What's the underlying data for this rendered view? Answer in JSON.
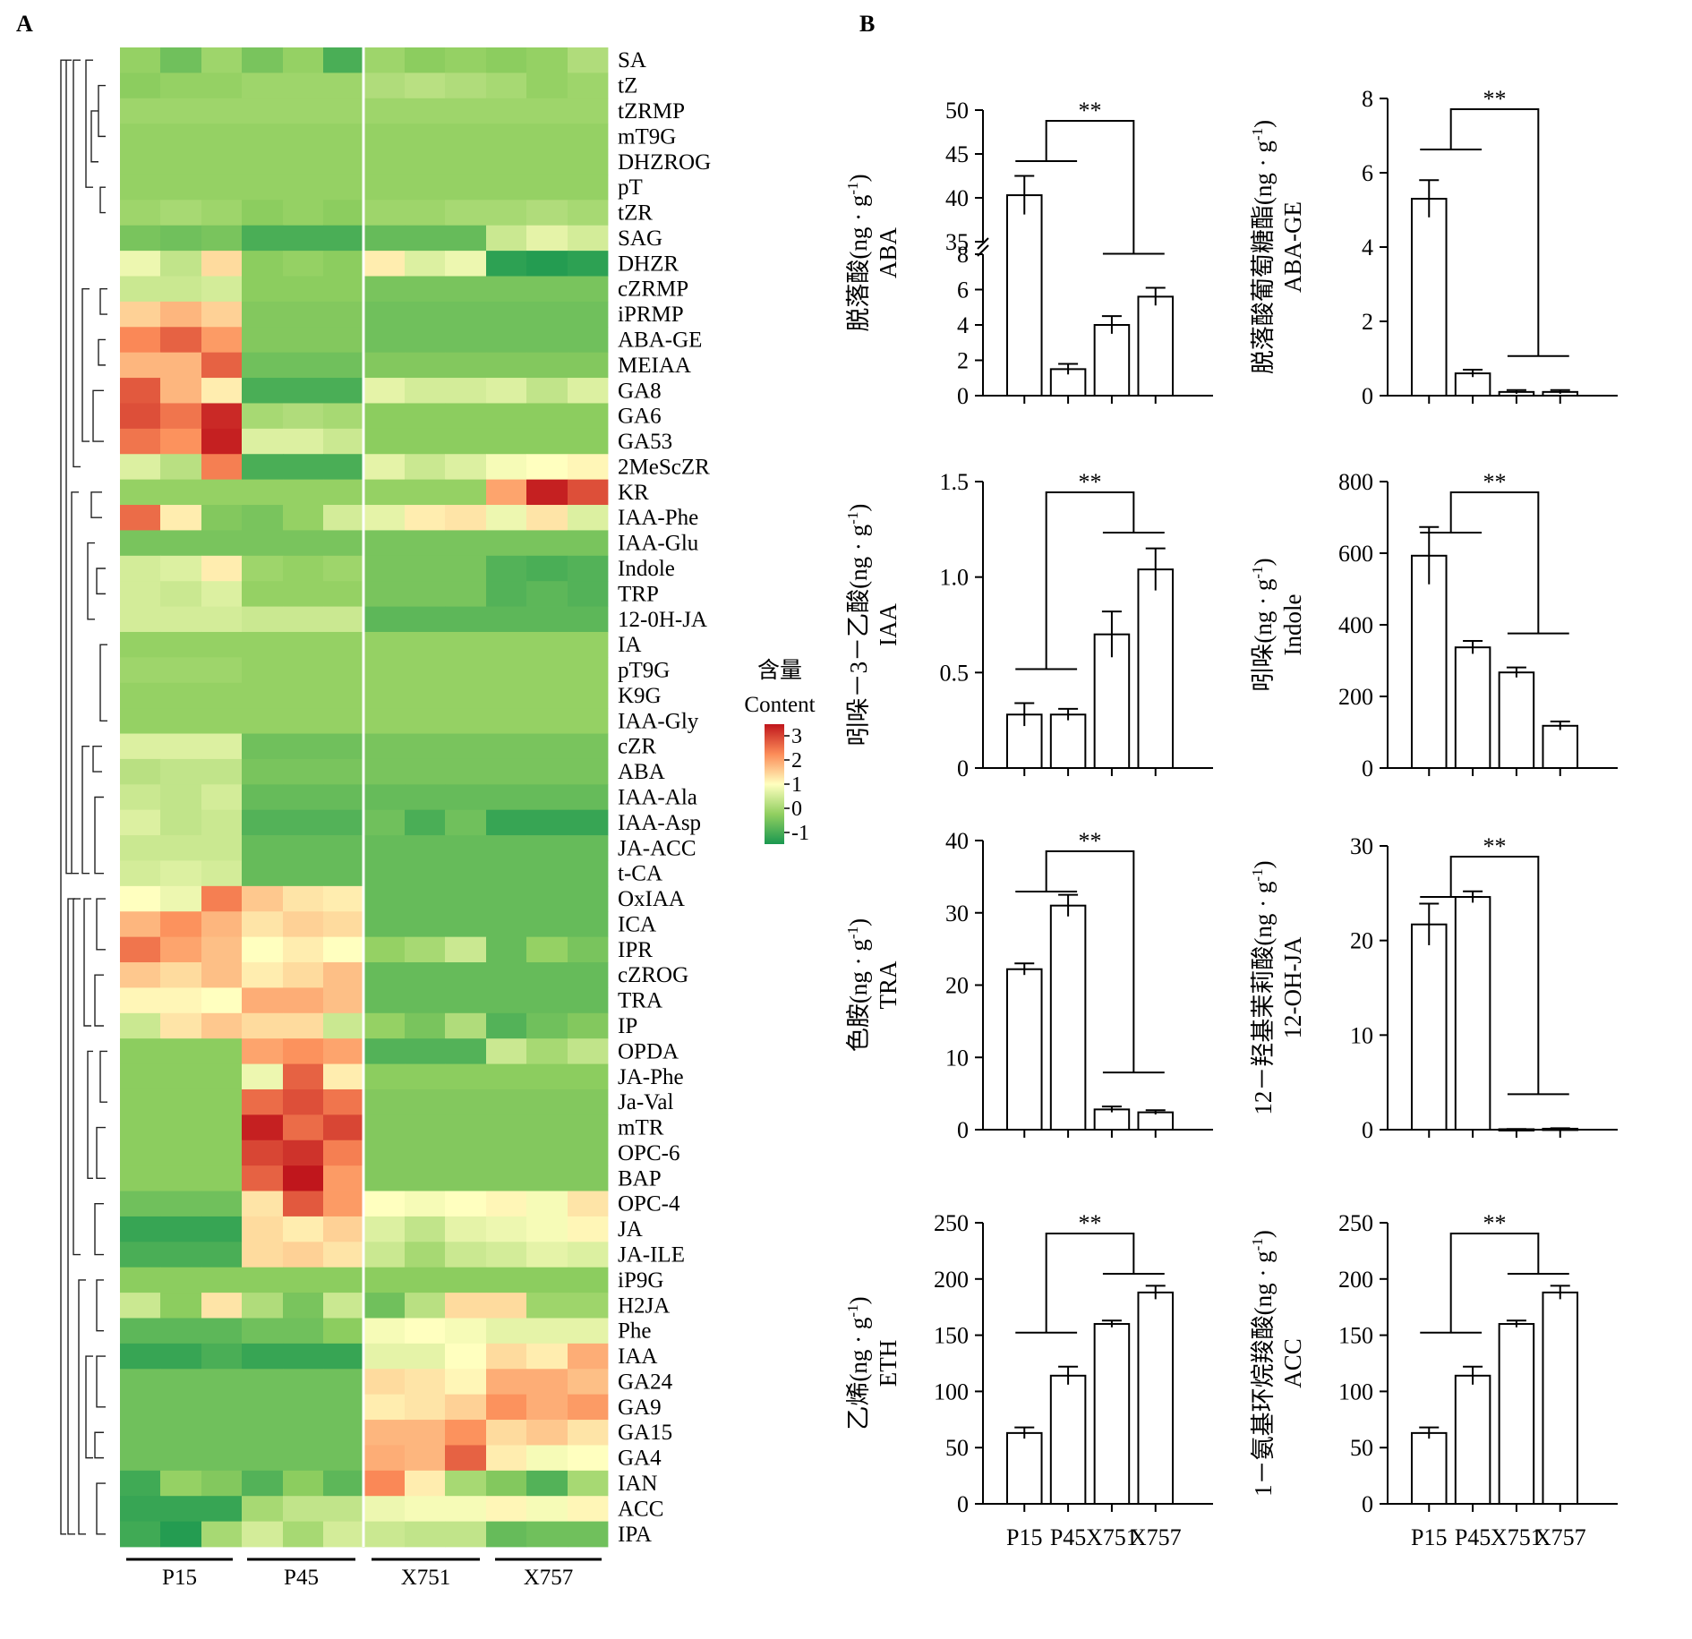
{
  "panels": {
    "a": "A",
    "b": "B"
  },
  "chart_data": [
    {
      "type": "heatmap",
      "panel": "A",
      "rows": [
        "SA",
        "tZ",
        "tZRMP",
        "mT9G",
        "DHZROG",
        "pT",
        "tZR",
        "SAG",
        "DHZR",
        "cZRMP",
        "iPRMP",
        "ABA-GE",
        "MEIAA",
        "GA8",
        "GA6",
        "GA53",
        "2MeScZR",
        "KR",
        "IAA-Phe",
        "IAA-Glu",
        "Indole",
        "TRP",
        "12-0H-JA",
        "IA",
        "pT9G",
        "K9G",
        "IAA-Gly",
        "cZR",
        "ABA",
        "IAA-Ala",
        "IAA-Asp",
        "JA-ACC",
        "t-CA",
        "OxIAA",
        "ICA",
        "IPR",
        "cZROG",
        "TRA",
        "IP",
        "OPDA",
        "JA-Phe",
        "Ja-Val",
        "mTR",
        "OPC-6",
        "BAP",
        "OPC-4",
        "JA",
        "JA-ILE",
        "iP9G",
        "H2JA",
        "Phe",
        "IAA",
        "GA24",
        "GA9",
        "GA15",
        "GA4",
        "IAN",
        "ACC",
        "IPA"
      ],
      "groups": [
        "P15",
        "P45",
        "X751",
        "X757"
      ],
      "legend_title": "含量",
      "legend_subtitle": "Content",
      "scale_ticks": [
        "3",
        "2",
        "1",
        "0",
        "-1"
      ],
      "value_range": [
        -1.6,
        3.4
      ],
      "color_stops": [
        "#1a9850",
        "#91cf60",
        "#ffffbf",
        "#fc8d59",
        "#c0161c"
      ],
      "values": [
        [
          -0.3,
          -0.7,
          -0.2,
          -0.6,
          -0.3,
          -1.1,
          -0.2,
          -0.4,
          -0.3,
          -0.4,
          -0.3,
          0.0
        ],
        [
          -0.4,
          -0.3,
          -0.3,
          -0.2,
          -0.2,
          -0.2,
          0.0,
          0.1,
          0.0,
          -0.1,
          -0.3,
          -0.2
        ],
        [
          -0.2,
          -0.2,
          -0.2,
          -0.2,
          -0.2,
          -0.2,
          -0.2,
          -0.2,
          -0.2,
          -0.2,
          -0.2,
          -0.2
        ],
        [
          -0.3,
          -0.3,
          -0.3,
          -0.3,
          -0.3,
          -0.3,
          -0.3,
          -0.3,
          -0.3,
          -0.3,
          -0.3,
          -0.3
        ],
        [
          -0.3,
          -0.3,
          -0.3,
          -0.3,
          -0.3,
          -0.3,
          -0.3,
          -0.3,
          -0.3,
          -0.3,
          -0.3,
          -0.3
        ],
        [
          -0.3,
          -0.3,
          -0.3,
          -0.3,
          -0.3,
          -0.3,
          -0.3,
          -0.3,
          -0.3,
          -0.3,
          -0.3,
          -0.3
        ],
        [
          -0.2,
          -0.1,
          -0.2,
          -0.4,
          -0.3,
          -0.4,
          -0.2,
          -0.2,
          -0.1,
          -0.1,
          0.0,
          -0.1
        ],
        [
          -0.6,
          -0.7,
          -0.6,
          -1.1,
          -1.1,
          -1.1,
          -0.8,
          -0.8,
          -0.8,
          0.3,
          0.6,
          0.4
        ],
        [
          0.7,
          0.2,
          1.3,
          -0.4,
          -0.3,
          -0.4,
          1.1,
          0.5,
          0.7,
          -1.4,
          -1.5,
          -1.4
        ],
        [
          0.3,
          0.3,
          0.4,
          -0.4,
          -0.4,
          -0.4,
          -0.6,
          -0.6,
          -0.6,
          -0.6,
          -0.6,
          -0.6
        ],
        [
          1.4,
          1.7,
          1.4,
          -0.5,
          -0.5,
          -0.5,
          -0.7,
          -0.7,
          -0.7,
          -0.7,
          -0.7,
          -0.7
        ],
        [
          2.2,
          2.6,
          2.0,
          -0.5,
          -0.5,
          -0.5,
          -0.7,
          -0.7,
          -0.7,
          -0.7,
          -0.7,
          -0.7
        ],
        [
          1.7,
          1.7,
          2.6,
          -0.7,
          -0.7,
          -0.7,
          -0.5,
          -0.5,
          -0.5,
          -0.5,
          -0.5,
          -0.5
        ],
        [
          2.7,
          1.7,
          1.1,
          -1.1,
          -1.1,
          -1.1,
          0.6,
          0.4,
          0.4,
          0.5,
          0.2,
          0.5
        ],
        [
          2.8,
          2.4,
          3.2,
          -0.1,
          0.0,
          -0.1,
          -0.4,
          -0.4,
          -0.4,
          -0.4,
          -0.4,
          -0.4
        ],
        [
          2.4,
          2.1,
          3.3,
          0.5,
          0.5,
          0.3,
          -0.4,
          -0.4,
          -0.4,
          -0.4,
          -0.4,
          -0.4
        ],
        [
          0.5,
          0.1,
          2.3,
          -1.1,
          -1.1,
          -1.1,
          0.6,
          0.3,
          0.5,
          0.8,
          0.9,
          1.0
        ],
        [
          -0.3,
          -0.3,
          -0.3,
          -0.3,
          -0.3,
          -0.3,
          -0.3,
          -0.3,
          -0.3,
          1.9,
          3.3,
          2.8
        ],
        [
          2.5,
          1.1,
          -0.5,
          -0.6,
          -0.3,
          0.4,
          0.6,
          1.1,
          1.2,
          0.7,
          1.2,
          0.5
        ],
        [
          -0.6,
          -0.6,
          -0.6,
          -0.6,
          -0.6,
          -0.6,
          -0.6,
          -0.6,
          -0.6,
          -0.6,
          -0.6,
          -0.6
        ],
        [
          0.4,
          0.5,
          1.1,
          -0.2,
          -0.3,
          -0.2,
          -0.6,
          -0.6,
          -0.6,
          -1.0,
          -1.1,
          -1.0
        ],
        [
          0.4,
          0.3,
          0.5,
          -0.3,
          -0.3,
          -0.3,
          -0.6,
          -0.6,
          -0.6,
          -1.0,
          -0.9,
          -1.0
        ],
        [
          0.4,
          0.4,
          0.4,
          0.3,
          0.3,
          0.3,
          -0.9,
          -0.9,
          -0.9,
          -0.9,
          -0.9,
          -0.9
        ],
        [
          -0.3,
          -0.3,
          -0.3,
          -0.3,
          -0.3,
          -0.3,
          -0.3,
          -0.3,
          -0.3,
          -0.3,
          -0.3,
          -0.3
        ],
        [
          -0.2,
          -0.2,
          -0.2,
          -0.3,
          -0.3,
          -0.3,
          -0.3,
          -0.3,
          -0.3,
          -0.3,
          -0.3,
          -0.3
        ],
        [
          -0.3,
          -0.3,
          -0.3,
          -0.3,
          -0.3,
          -0.3,
          -0.3,
          -0.3,
          -0.3,
          -0.3,
          -0.3,
          -0.3
        ],
        [
          -0.3,
          -0.3,
          -0.3,
          -0.3,
          -0.3,
          -0.3,
          -0.3,
          -0.3,
          -0.3,
          -0.3,
          -0.3,
          -0.3
        ],
        [
          0.5,
          0.5,
          0.5,
          -0.7,
          -0.7,
          -0.7,
          -0.6,
          -0.6,
          -0.6,
          -0.6,
          -0.6,
          -0.6
        ],
        [
          0.1,
          0.2,
          0.2,
          -0.6,
          -0.6,
          -0.6,
          -0.6,
          -0.6,
          -0.6,
          -0.6,
          -0.6,
          -0.6
        ],
        [
          0.3,
          0.2,
          0.4,
          -0.8,
          -0.8,
          -0.8,
          -0.8,
          -0.8,
          -0.8,
          -0.8,
          -0.8,
          -0.8
        ],
        [
          0.5,
          0.2,
          0.3,
          -1.0,
          -1.0,
          -1.0,
          -0.7,
          -1.1,
          -0.7,
          -1.3,
          -1.3,
          -1.3
        ],
        [
          0.3,
          0.3,
          0.3,
          -0.8,
          -0.8,
          -0.8,
          -0.8,
          -0.8,
          -0.8,
          -0.8,
          -0.8,
          -0.8
        ],
        [
          0.4,
          0.5,
          0.4,
          -0.8,
          -0.8,
          -0.8,
          -0.8,
          -0.8,
          -0.8,
          -0.8,
          -0.8,
          -0.8
        ],
        [
          0.9,
          0.7,
          2.3,
          1.5,
          1.2,
          1.1,
          -0.8,
          -0.8,
          -0.8,
          -0.8,
          -0.8,
          -0.8
        ],
        [
          1.7,
          2.1,
          1.7,
          1.2,
          1.4,
          1.3,
          -0.8,
          -0.8,
          -0.8,
          -0.8,
          -0.8,
          -0.8
        ],
        [
          2.4,
          1.9,
          1.6,
          0.9,
          1.1,
          0.9,
          -0.3,
          -0.1,
          0.3,
          -0.8,
          -0.3,
          -0.6
        ],
        [
          1.5,
          1.3,
          1.6,
          1.1,
          1.3,
          1.6,
          -0.8,
          -0.8,
          -0.8,
          -0.8,
          -0.8,
          -0.8
        ],
        [
          1.0,
          1.0,
          0.9,
          1.8,
          1.8,
          1.6,
          -0.8,
          -0.8,
          -0.8,
          -0.8,
          -0.8,
          -0.8
        ],
        [
          0.3,
          1.2,
          1.5,
          1.3,
          1.3,
          0.3,
          -0.3,
          -0.6,
          0.0,
          -1.0,
          -0.7,
          -0.5
        ],
        [
          -0.4,
          -0.4,
          -0.4,
          1.9,
          2.1,
          1.9,
          -1.0,
          -1.0,
          -1.0,
          0.3,
          -0.1,
          0.2
        ],
        [
          -0.4,
          -0.4,
          -0.4,
          0.7,
          2.6,
          1.1,
          -0.4,
          -0.4,
          -0.4,
          -0.4,
          -0.4,
          -0.4
        ],
        [
          -0.4,
          -0.4,
          -0.4,
          2.5,
          2.8,
          2.4,
          -0.5,
          -0.5,
          -0.5,
          -0.5,
          -0.5,
          -0.5
        ],
        [
          -0.4,
          -0.4,
          -0.4,
          3.3,
          2.5,
          2.9,
          -0.5,
          -0.5,
          -0.5,
          -0.5,
          -0.5,
          -0.5
        ],
        [
          -0.4,
          -0.4,
          -0.4,
          2.9,
          3.1,
          2.3,
          -0.5,
          -0.5,
          -0.5,
          -0.5,
          -0.5,
          -0.5
        ],
        [
          -0.4,
          -0.4,
          -0.4,
          2.6,
          3.4,
          2.0,
          -0.5,
          -0.5,
          -0.5,
          -0.5,
          -0.5,
          -0.5
        ],
        [
          -0.7,
          -0.7,
          -0.7,
          1.2,
          2.7,
          2.0,
          0.9,
          0.8,
          0.9,
          1.0,
          0.8,
          1.2
        ],
        [
          -1.3,
          -1.3,
          -1.3,
          1.3,
          1.1,
          1.4,
          0.5,
          0.2,
          0.6,
          0.7,
          0.8,
          1.0
        ],
        [
          -1.1,
          -1.1,
          -1.1,
          1.3,
          1.4,
          1.2,
          0.3,
          -0.1,
          0.3,
          0.4,
          0.6,
          0.5
        ],
        [
          -0.4,
          -0.4,
          -0.4,
          -0.4,
          -0.4,
          -0.4,
          -0.4,
          -0.4,
          -0.4,
          -0.4,
          -0.4,
          -0.4
        ],
        [
          0.3,
          -0.4,
          1.2,
          0.0,
          -0.6,
          0.3,
          -0.7,
          0.1,
          1.3,
          1.3,
          -0.2,
          -0.2
        ],
        [
          -0.9,
          -0.9,
          -0.9,
          -0.7,
          -0.7,
          -0.4,
          0.8,
          0.9,
          0.8,
          0.6,
          0.6,
          0.6
        ],
        [
          -1.3,
          -1.3,
          -1.1,
          -1.3,
          -1.3,
          -1.3,
          0.6,
          0.6,
          0.9,
          1.3,
          1.1,
          1.8
        ],
        [
          -0.7,
          -0.7,
          -0.7,
          -0.7,
          -0.7,
          -0.7,
          1.3,
          1.2,
          1.0,
          1.8,
          1.8,
          1.6
        ],
        [
          -0.7,
          -0.7,
          -0.7,
          -0.7,
          -0.7,
          -0.7,
          1.1,
          1.2,
          1.4,
          2.1,
          1.8,
          2.0
        ],
        [
          -0.7,
          -0.7,
          -0.7,
          -0.7,
          -0.7,
          -0.7,
          1.7,
          1.7,
          2.1,
          1.3,
          1.5,
          1.2
        ],
        [
          -0.7,
          -0.7,
          -0.7,
          -0.7,
          -0.7,
          -0.7,
          1.8,
          1.7,
          2.6,
          1.1,
          0.8,
          0.9
        ],
        [
          -1.2,
          -0.3,
          -0.5,
          -1.0,
          -0.4,
          -0.9,
          2.2,
          1.1,
          -0.1,
          -0.5,
          -1.0,
          -0.1
        ],
        [
          -1.3,
          -1.3,
          -1.3,
          -0.1,
          0.2,
          0.2,
          0.7,
          0.8,
          0.8,
          1.0,
          0.8,
          1.0
        ],
        [
          -1.2,
          -1.5,
          -0.1,
          0.4,
          -0.1,
          0.4,
          0.3,
          0.2,
          0.2,
          -0.8,
          -0.7,
          -0.7
        ]
      ]
    },
    {
      "type": "bar",
      "panel": "B",
      "ylabel_cn": "脱落酸(ng · g",
      "ylabel_sup": "-1",
      "ylabel_close": ")",
      "ylabel_en": "ABA",
      "categories": [
        "P15",
        "P45",
        "X751",
        "X757"
      ],
      "values": [
        40.3,
        1.5,
        4.0,
        5.6
      ],
      "errors": [
        2.2,
        0.3,
        0.5,
        0.5
      ],
      "broken_axis": true,
      "lower_range": [
        0,
        8
      ],
      "upper_range": [
        35,
        50
      ],
      "yticks": [
        "0",
        "2",
        "4",
        "6",
        "8",
        "35",
        "40",
        "45",
        "50"
      ],
      "significance": "**",
      "show_x_labels": false
    },
    {
      "type": "bar",
      "panel": "B",
      "ylabel_cn": "脱落酸葡萄糖酯(ng · g",
      "ylabel_sup": "-1",
      "ylabel_close": ")",
      "ylabel_en": "ABA-GE",
      "categories": [
        "P15",
        "P45",
        "X751",
        "X757"
      ],
      "values": [
        5.3,
        0.6,
        0.1,
        0.1
      ],
      "errors": [
        0.5,
        0.1,
        0.05,
        0.05
      ],
      "ylim": [
        0,
        8
      ],
      "yticks": [
        "0",
        "2",
        "4",
        "6",
        "8"
      ],
      "significance": "**",
      "show_x_labels": false
    },
    {
      "type": "bar",
      "panel": "B",
      "ylabel_cn": "吲哚－3－乙酸(ng · g",
      "ylabel_sup": "-1",
      "ylabel_close": ")",
      "ylabel_en": "IAA",
      "categories": [
        "P15",
        "P45",
        "X751",
        "X757"
      ],
      "values": [
        0.28,
        0.28,
        0.7,
        1.04
      ],
      "errors": [
        0.06,
        0.03,
        0.12,
        0.11
      ],
      "ylim": [
        0,
        1.5
      ],
      "yticks": [
        "0",
        "0.5",
        "1.0",
        "1.5"
      ],
      "significance": "**",
      "show_x_labels": false
    },
    {
      "type": "bar",
      "panel": "B",
      "ylabel_cn": "吲哚(ng · g",
      "ylabel_sup": "-1",
      "ylabel_close": ")",
      "ylabel_en": "Indole",
      "categories": [
        "P15",
        "P45",
        "X751",
        "X757"
      ],
      "values": [
        593,
        337,
        267,
        118
      ],
      "errors": [
        80,
        18,
        14,
        12
      ],
      "ylim": [
        0,
        800
      ],
      "yticks": [
        "0",
        "200",
        "400",
        "600",
        "800"
      ],
      "significance": "**",
      "show_x_labels": false
    },
    {
      "type": "bar",
      "panel": "B",
      "ylabel_cn": "色胺(ng · g",
      "ylabel_sup": "-1",
      "ylabel_close": ")",
      "ylabel_en": "TRA",
      "categories": [
        "P15",
        "P45",
        "X751",
        "X757"
      ],
      "values": [
        22.2,
        31.0,
        2.8,
        2.4
      ],
      "errors": [
        0.8,
        1.5,
        0.4,
        0.3
      ],
      "ylim": [
        0,
        40
      ],
      "yticks": [
        "0",
        "10",
        "20",
        "30",
        "40"
      ],
      "significance": "**",
      "show_x_labels": false
    },
    {
      "type": "bar",
      "panel": "B",
      "ylabel_cn": "12－羟基茉莉酸(ng · g",
      "ylabel_sup": "-1",
      "ylabel_close": ")",
      "ylabel_en": "12-OH-JA",
      "categories": [
        "P15",
        "P45",
        "X751",
        "X757"
      ],
      "values": [
        21.7,
        24.6,
        0.05,
        0.1
      ],
      "errors": [
        2.2,
        0.6,
        0.02,
        0.05
      ],
      "ylim": [
        0,
        30
      ],
      "yticks": [
        "0",
        "10",
        "20",
        "30"
      ],
      "significance": "**",
      "show_x_labels": false
    },
    {
      "type": "bar",
      "panel": "B",
      "ylabel_cn": "乙烯(ng · g",
      "ylabel_sup": "-1",
      "ylabel_close": ")",
      "ylabel_en": "ETH",
      "categories": [
        "P15",
        "P45",
        "X751",
        "X757"
      ],
      "values": [
        63,
        114,
        160,
        188
      ],
      "errors": [
        5,
        8,
        3,
        6
      ],
      "ylim": [
        0,
        250
      ],
      "yticks": [
        "0",
        "50",
        "100",
        "150",
        "200",
        "250"
      ],
      "significance": "**",
      "show_x_labels": true
    },
    {
      "type": "bar",
      "panel": "B",
      "ylabel_cn": "1－氨基环烷羧酸(ng · g",
      "ylabel_sup": "-1",
      "ylabel_close": ")",
      "ylabel_en": "ACC",
      "categories": [
        "P15",
        "P45",
        "X751",
        "X757"
      ],
      "values": [
        63,
        114,
        160,
        188
      ],
      "errors": [
        5,
        8,
        3,
        6
      ],
      "ylim": [
        0,
        250
      ],
      "yticks": [
        "0",
        "50",
        "100",
        "150",
        "200",
        "250"
      ],
      "significance": "**",
      "show_x_labels": true
    }
  ]
}
